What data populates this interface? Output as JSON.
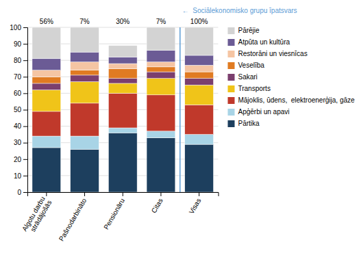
{
  "chart_data": {
    "type": "bar",
    "stacked": true,
    "categories": [
      "Algotu darbu\nstrādājošās",
      "Pašnodarbināto",
      "Pensionāru",
      "Citas",
      "Visas"
    ],
    "series": [
      {
        "name": "Pārtika",
        "color": "#1d3f5e",
        "values": [
          27,
          26,
          36,
          33,
          29
        ]
      },
      {
        "name": "Apģērbi un apavi",
        "color": "#a8d4e6",
        "values": [
          7,
          8,
          3,
          4,
          6
        ]
      },
      {
        "name": "Mājoklis, ūdens,  elektroenerģija, gāze",
        "color": "#c0392b",
        "values": [
          15,
          20,
          21,
          22,
          18
        ]
      },
      {
        "name": "Transports",
        "color": "#f0c419",
        "values": [
          13,
          13,
          6,
          10,
          12
        ]
      },
      {
        "name": "Sakari",
        "color": "#7b3f6e",
        "values": [
          4,
          4,
          3,
          4,
          4
        ]
      },
      {
        "name": "Veselība",
        "color": "#e07b22",
        "values": [
          4,
          3,
          6,
          3,
          4
        ]
      },
      {
        "name": "Restorāni un viesnīcas",
        "color": "#f5c5a3",
        "values": [
          4,
          5,
          3,
          3,
          4
        ]
      },
      {
        "name": "Atpūta un kultūra",
        "color": "#6b5b95",
        "values": [
          7,
          6,
          4,
          7,
          6
        ]
      },
      {
        "name": "Pārējie",
        "color": "#d3d3d3",
        "values": [
          19,
          15,
          7,
          14,
          17
        ]
      }
    ],
    "ylim": [
      0,
      100
    ],
    "yticks": [
      0,
      10,
      20,
      30,
      40,
      50,
      60,
      70,
      80,
      90,
      100
    ],
    "grid": true,
    "legend": "right",
    "shares": [
      {
        "value": 56,
        "label": "56%"
      },
      {
        "value": 7,
        "label": "7%"
      },
      {
        "value": 30,
        "label": "30%"
      },
      {
        "value": 7,
        "label": "7%"
      },
      {
        "value": 100,
        "label": "100%"
      }
    ],
    "annotation": {
      "text": "←  Sociālekonomisko grupu īpatsvars",
      "color": "#5b9bd5"
    }
  }
}
